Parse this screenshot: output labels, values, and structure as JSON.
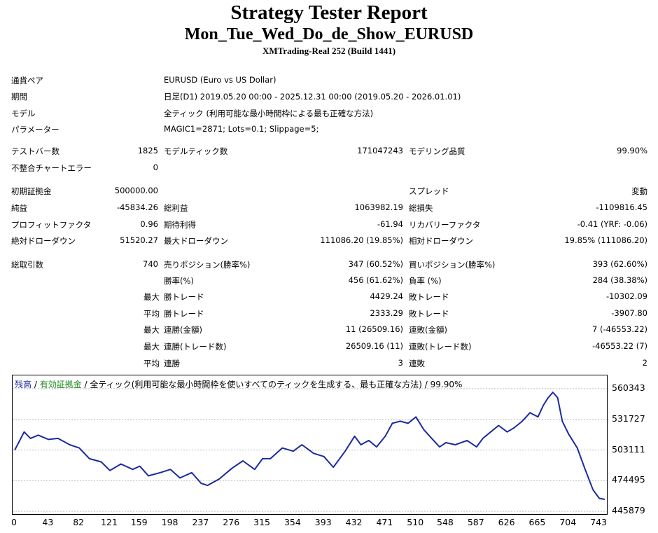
{
  "header": {
    "title": "Strategy Tester Report",
    "expert": "Mon_Tue_Wed_Do_de_Show_EURUSD",
    "server": "XMTrading-Real 252 (Build 1441)"
  },
  "info": [
    {
      "label": "通貨ペア",
      "value": "EURUSD (Euro vs US Dollar)"
    },
    {
      "label": "期間",
      "value": "日足(D1) 2019.05.20 00:00 - 2025.12.31 00:00 (2019.05.20 - 2026.01.01)"
    },
    {
      "label": "モデル",
      "value": "全ティック (利用可能な最小時間枠による最も正確な方法)"
    },
    {
      "label": "パラメーター",
      "value": "MAGIC1=2871; Lots=0.1; Slippage=5;"
    }
  ],
  "stats": {
    "bars_label": "テストバー数",
    "bars": "1825",
    "ticks_label": "モデルティック数",
    "ticks": "171047243",
    "quality_label": "モデリング品質",
    "quality": "99.90%",
    "mismatch_label": "不整合チャートエラー",
    "mismatch": "0",
    "deposit_label": "初期証拠金",
    "deposit": "500000.00",
    "spread_label": "スプレッド",
    "spread": "変動",
    "net_label": "純益",
    "net": "-45834.26",
    "gross_profit_label": "総利益",
    "gross_profit": "1063982.19",
    "gross_loss_label": "総損失",
    "gross_loss": "-1109816.45",
    "pf_label": "プロフィットファクタ",
    "pf": "0.96",
    "payoff_label": "期待利得",
    "payoff": "-61.94",
    "recovery_label": "リカバリーファクタ",
    "recovery": "-0.41 (YRF: -0.06)",
    "abs_dd_label": "絶対ドローダウン",
    "abs_dd": "51520.27",
    "max_dd_label": "最大ドローダウン",
    "max_dd": "111086.20 (19.85%)",
    "rel_dd_label": "相対ドローダウン",
    "rel_dd": "19.85% (111086.20)",
    "trades_label": "総取引数",
    "trades": "740",
    "short_label": "売りポジション(勝率%)",
    "short": "347 (60.52%)",
    "long_label": "買いポジション(勝率%)",
    "long": "393 (62.60%)",
    "win_label": "勝率(%)",
    "win": "456 (61.62%)",
    "loss_label": "負率 (%)",
    "loss": "284 (38.38%)",
    "max_pre": "最大",
    "avg_pre": "平均",
    "best_label": "勝トレード",
    "best": "4429.24",
    "worst_label": "敗トレード",
    "worst": "-10302.09",
    "avg_win_label": "勝トレード",
    "avg_win": "2333.29",
    "avg_loss_label": "敗トレード",
    "avg_loss": "-3907.80",
    "cons_win_amt_label": "連勝(金額)",
    "cons_win_amt": "11 (26509.16)",
    "cons_loss_amt_label": "連敗(金額)",
    "cons_loss_amt": "7 (-46553.22)",
    "cons_win_cnt_label": "連勝(トレード数)",
    "cons_win_cnt": "26509.16 (11)",
    "cons_loss_cnt_label": "連敗(トレード数)",
    "cons_loss_cnt": "-46553.22 (7)",
    "avg_cons_win_label": "連勝",
    "avg_cons_win": "3",
    "avg_cons_loss_label": "連敗",
    "avg_cons_loss": "2"
  },
  "legend": {
    "balance": "残高",
    "sep1": " / ",
    "equity": "有効証拠金",
    "rest": " / 全ティック(利用可能な最小時間枠を使いすべてのティックを生成する、最も正確な方法) / 99.90%"
  },
  "colors": {
    "balance": "#1b2aa0",
    "equity": "#1a8a1a",
    "grid": "#b8b8b8"
  },
  "chart_data": {
    "type": "line",
    "title": "",
    "xlabel": "",
    "ylabel": "",
    "xlim": [
      0,
      750
    ],
    "ylim": [
      445879,
      560343
    ],
    "y_ticks": [
      560343,
      531727,
      503111,
      474495,
      445879
    ],
    "x_ticks": [
      0,
      43,
      82,
      121,
      159,
      198,
      237,
      276,
      315,
      354,
      393,
      432,
      471,
      510,
      548,
      587,
      626,
      665,
      704,
      743
    ],
    "series": [
      {
        "name": "残高",
        "x": [
          0,
          5,
          12,
          20,
          30,
          43,
          55,
          70,
          82,
          95,
          110,
          121,
          135,
          150,
          159,
          170,
          185,
          198,
          210,
          225,
          237,
          245,
          260,
          276,
          290,
          305,
          315,
          325,
          340,
          354,
          365,
          380,
          393,
          405,
          420,
          432,
          440,
          450,
          460,
          471,
          480,
          490,
          500,
          510,
          520,
          530,
          540,
          548,
          560,
          575,
          587,
          595,
          605,
          615,
          626,
          635,
          645,
          655,
          665,
          672,
          678,
          684,
          690,
          696,
          704,
          715,
          725,
          735,
          743,
          750
        ],
        "y": [
          503000,
          510000,
          520000,
          514000,
          517000,
          513000,
          514000,
          508000,
          505000,
          495000,
          492000,
          484000,
          490000,
          485000,
          488000,
          479000,
          482000,
          485000,
          477000,
          482000,
          472000,
          470000,
          476000,
          486000,
          493000,
          485000,
          495000,
          495000,
          505000,
          502000,
          508000,
          500000,
          497000,
          487000,
          502000,
          516000,
          508000,
          512000,
          506000,
          516000,
          528000,
          530000,
          528000,
          534000,
          522000,
          514000,
          506000,
          510000,
          508000,
          512000,
          506000,
          514000,
          520000,
          526000,
          520000,
          524000,
          530000,
          538000,
          534000,
          545000,
          552000,
          557000,
          552000,
          530000,
          518000,
          505000,
          485000,
          466000,
          458000,
          457000
        ]
      }
    ]
  }
}
